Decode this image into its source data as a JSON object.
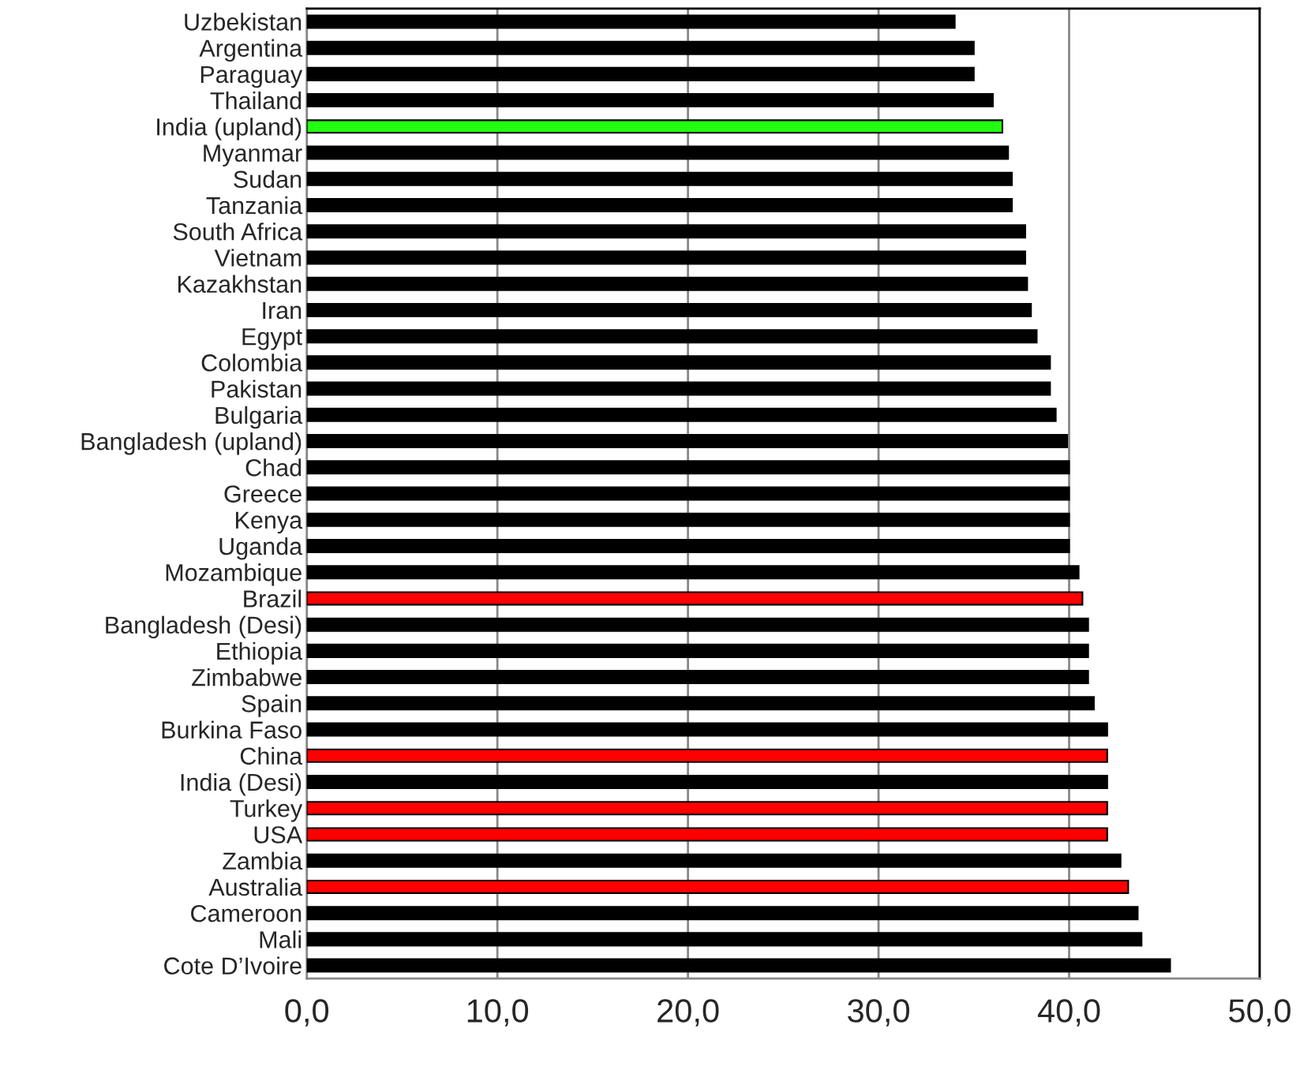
{
  "chart_data": {
    "type": "bar",
    "orientation": "horizontal",
    "categories": [
      "Uzbekistan",
      "Argentina",
      "Paraguay",
      "Thailand",
      "India (upland)",
      "Myanmar",
      "Sudan",
      "Tanzania",
      "South Africa",
      "Vietnam",
      "Kazakhstan",
      "Iran",
      "Egypt",
      "Colombia",
      "Pakistan",
      "Bulgaria",
      "Bangladesh (upland)",
      "Chad",
      "Greece",
      "Kenya",
      "Uganda",
      "Mozambique",
      "Brazil",
      "Bangladesh (Desi)",
      "Ethiopia",
      "Zimbabwe",
      "Spain",
      "Burkina Faso",
      "China",
      "India (Desi)",
      "Turkey",
      "USA",
      "Zambia",
      "Australia",
      "Cameroon",
      "Mali",
      "Cote D’Ivoire"
    ],
    "values": [
      34.0,
      35.0,
      35.0,
      36.0,
      36.5,
      36.8,
      37.0,
      37.0,
      37.7,
      37.7,
      37.8,
      38.0,
      38.3,
      39.0,
      39.0,
      39.3,
      39.9,
      40.0,
      40.0,
      40.0,
      40.0,
      40.5,
      40.7,
      41.0,
      41.0,
      41.0,
      41.3,
      42.0,
      42.0,
      42.0,
      42.0,
      42.0,
      42.7,
      43.1,
      43.6,
      43.8,
      45.3
    ],
    "colors": [
      "#000000",
      "#000000",
      "#000000",
      "#000000",
      "#22ff11",
      "#000000",
      "#000000",
      "#000000",
      "#000000",
      "#000000",
      "#000000",
      "#000000",
      "#000000",
      "#000000",
      "#000000",
      "#000000",
      "#000000",
      "#000000",
      "#000000",
      "#000000",
      "#000000",
      "#000000",
      "#ff0000",
      "#000000",
      "#000000",
      "#000000",
      "#000000",
      "#000000",
      "#ff0000",
      "#000000",
      "#ff0000",
      "#ff0000",
      "#000000",
      "#ff0000",
      "#000000",
      "#000000",
      "#000000"
    ],
    "xlim": [
      0,
      50
    ],
    "xticks": [
      {
        "value": 0,
        "label": "0,0"
      },
      {
        "value": 10,
        "label": "10,0"
      },
      {
        "value": 20,
        "label": "20,0"
      },
      {
        "value": 30,
        "label": "30,0"
      },
      {
        "value": 40,
        "label": "40,0"
      },
      {
        "value": 50,
        "label": "50,0"
      }
    ],
    "grid": "x"
  }
}
